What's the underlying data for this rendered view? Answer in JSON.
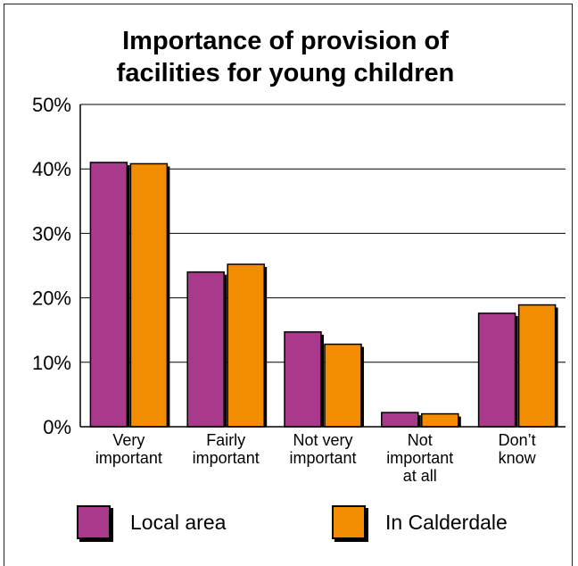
{
  "chart_data": {
    "type": "bar",
    "title_lines": [
      "Importance of provision of",
      "facilities for young children"
    ],
    "categories": [
      [
        "Very",
        "important"
      ],
      [
        "Fairly",
        "important"
      ],
      [
        "Not very",
        "important"
      ],
      [
        "Not",
        "important",
        "at all"
      ],
      [
        "Don’t",
        "know"
      ]
    ],
    "series": [
      {
        "name": "Local area",
        "color": "#a8398b",
        "values": [
          41,
          24,
          14.7,
          2.2,
          17.6
        ]
      },
      {
        "name": "In Calderdale",
        "color": "#f28c00",
        "values": [
          40.8,
          25.2,
          12.8,
          2,
          18.9
        ]
      }
    ],
    "ylim": [
      0,
      50
    ],
    "yticks": [
      "0%",
      "10%",
      "20%",
      "30%",
      "40%",
      "50%"
    ],
    "grid": true,
    "legend_position": "bottom"
  }
}
